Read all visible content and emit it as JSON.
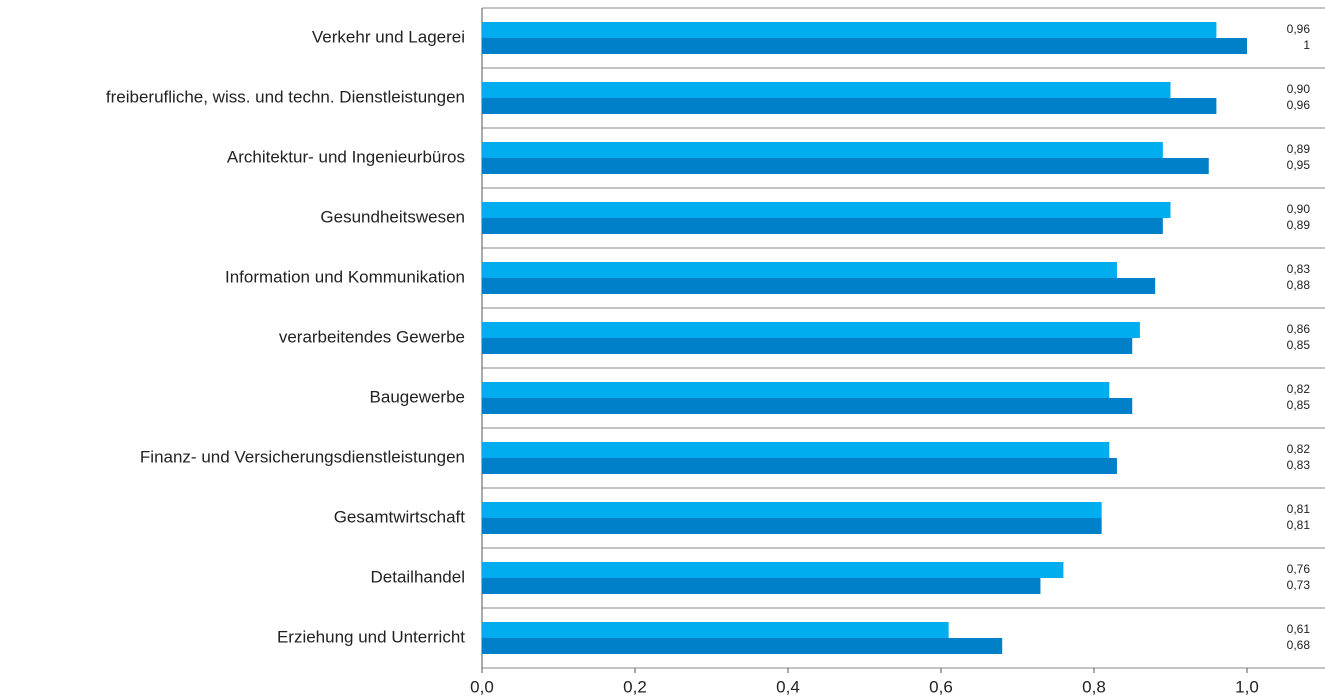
{
  "chart_data": {
    "type": "hbar",
    "categories": [
      "Verkehr und Lagerei",
      "freiberufliche, wiss. und techn. Dienstleistungen",
      "Architektur- und Ingenieurbüros",
      "Gesundheitswesen",
      "Information und Kommunikation",
      "verarbeitendes Gewerbe",
      "Baugewerbe",
      "Finanz- und Versicherungsdienstleistungen",
      "Gesamtwirtschaft",
      "Detailhandel",
      "Erziehung und Unterricht"
    ],
    "series": [
      {
        "color": "#00aeef",
        "values": [
          0.96,
          0.9,
          0.89,
          0.9,
          0.83,
          0.86,
          0.82,
          0.82,
          0.81,
          0.76,
          0.61
        ],
        "value_labels": [
          "0,96",
          "0,90",
          "0,89",
          "0,90",
          "0,83",
          "0,86",
          "0,82",
          "0,82",
          "0,81",
          "0,76",
          "0,61"
        ]
      },
      {
        "color": "#0080c8",
        "values": [
          1,
          0.96,
          0.95,
          0.89,
          0.88,
          0.85,
          0.85,
          0.83,
          0.81,
          0.73,
          0.68
        ],
        "value_labels": [
          "1",
          "0,96",
          "0,95",
          "0,89",
          "0,88",
          "0,85",
          "0,85",
          "0,83",
          "0,81",
          "0,73",
          "0,68"
        ]
      }
    ],
    "xlim": [
      0,
      1.1
    ],
    "xticks": [
      {
        "value": 0,
        "label": "0,0"
      },
      {
        "value": 0.2,
        "label": "0,2"
      },
      {
        "value": 0.4,
        "label": "0,4"
      },
      {
        "value": 0.6,
        "label": "0,6"
      },
      {
        "value": 0.8,
        "label": "0,8"
      },
      {
        "value": 1.0,
        "label": "1,0"
      }
    ]
  }
}
